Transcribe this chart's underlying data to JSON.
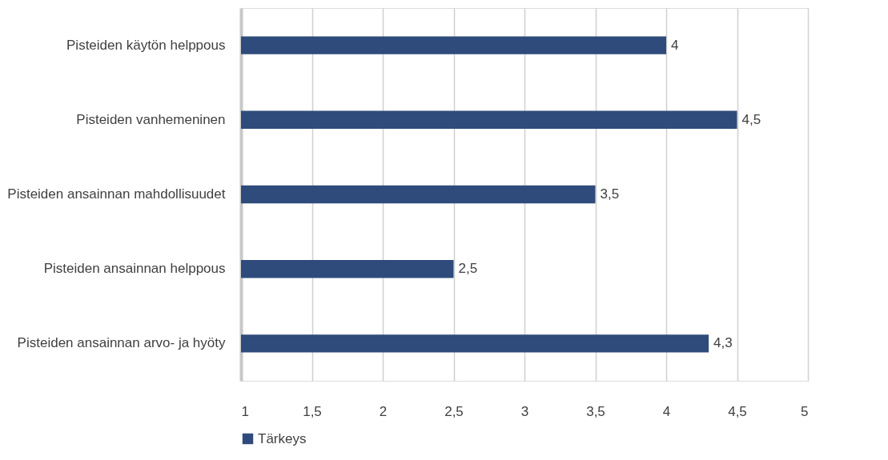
{
  "chart_data": {
    "type": "bar",
    "orientation": "horizontal",
    "categories": [
      "Pisteiden käytön helppous",
      "Pisteiden vanhemeninen",
      "Pisteiden ansainnan mahdollisuudet",
      "Pisteiden ansainnan helppous",
      "Pisteiden ansainnan arvo- ja hyöty"
    ],
    "series": [
      {
        "name": "Tärkeys",
        "color": "#2f4b7c",
        "values": [
          4,
          4.5,
          3.5,
          2.5,
          4.3
        ],
        "value_labels": [
          "4",
          "4,5",
          "3,5",
          "2,5",
          "4,3"
        ]
      }
    ],
    "xlim": [
      1,
      5
    ],
    "xticks": [
      1,
      {
        "value": 1.5,
        "label": "1,5"
      },
      2,
      {
        "value": 2.5,
        "label": "2,5"
      },
      3,
      {
        "value": 3.5,
        "label": "3,5"
      },
      4,
      {
        "value": 4.5,
        "label": "4,5"
      },
      5
    ],
    "grid": "x",
    "legend": "bottom"
  }
}
